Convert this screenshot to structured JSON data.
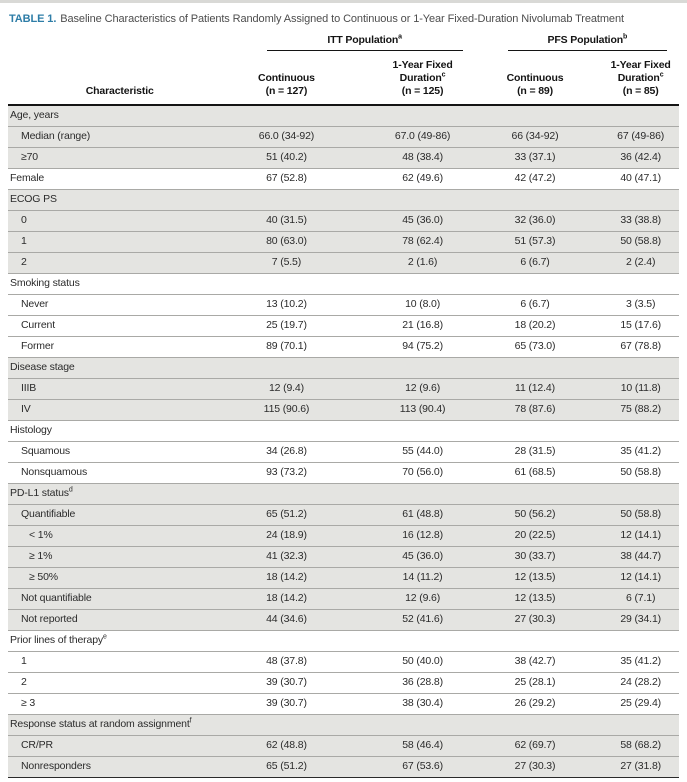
{
  "colors": {
    "accent_teal": "#2e7da7",
    "row_shade": "#e4e4e1",
    "grid_line": "#a9a9a6",
    "heavy_rule": "#141414"
  },
  "caption": {
    "label": "TABLE 1.",
    "title": "Baseline Characteristics of Patients Randomly Assigned to Continuous or 1-Year Fixed-Duration Nivolumab Treatment"
  },
  "table": {
    "characteristic_header": "Characteristic",
    "col_groups": [
      {
        "label": "ITT Population",
        "sup": "a"
      },
      {
        "label": "PFS Population",
        "sup": "b"
      }
    ],
    "columns": [
      {
        "id": "itt-continuous",
        "lines": [
          "Continuous"
        ],
        "sup": "",
        "n": "(n = 127)"
      },
      {
        "id": "itt-1yr-fixed",
        "lines": [
          "1-Year Fixed",
          "Duration"
        ],
        "sup": "c",
        "n": "(n = 125)"
      },
      {
        "id": "pfs-continuous",
        "lines": [
          "Continuous"
        ],
        "sup": "",
        "n": "(n = 89)"
      },
      {
        "id": "pfs-1yr-fixed",
        "lines": [
          "1-Year Fixed",
          "Duration"
        ],
        "sup": "c",
        "n": "(n = 85)"
      }
    ],
    "rows": [
      {
        "label": "Age, years",
        "sup": "",
        "indent": 0,
        "section": true,
        "shaded": true,
        "values": [
          "",
          "",
          "",
          ""
        ]
      },
      {
        "label": "Median (range)",
        "sup": "",
        "indent": 1,
        "section": false,
        "shaded": true,
        "values": [
          "66.0 (34-92)",
          "67.0 (49-86)",
          "66 (34-92)",
          "67 (49-86)"
        ]
      },
      {
        "label": "≥70",
        "sup": "",
        "indent": 1,
        "section": false,
        "shaded": true,
        "values": [
          "51 (40.2)",
          "48 (38.4)",
          "33 (37.1)",
          "36 (42.4)"
        ]
      },
      {
        "label": "Female",
        "sup": "",
        "indent": 0,
        "section": false,
        "shaded": false,
        "values": [
          "67 (52.8)",
          "62 (49.6)",
          "42 (47.2)",
          "40 (47.1)"
        ]
      },
      {
        "label": "ECOG PS",
        "sup": "",
        "indent": 0,
        "section": true,
        "shaded": true,
        "values": [
          "",
          "",
          "",
          ""
        ]
      },
      {
        "label": "0",
        "sup": "",
        "indent": 1,
        "section": false,
        "shaded": true,
        "values": [
          "40 (31.5)",
          "45 (36.0)",
          "32 (36.0)",
          "33 (38.8)"
        ]
      },
      {
        "label": "1",
        "sup": "",
        "indent": 1,
        "section": false,
        "shaded": true,
        "values": [
          "80 (63.0)",
          "78 (62.4)",
          "51 (57.3)",
          "50 (58.8)"
        ]
      },
      {
        "label": "2",
        "sup": "",
        "indent": 1,
        "section": false,
        "shaded": true,
        "values": [
          "7 (5.5)",
          "2 (1.6)",
          "6 (6.7)",
          "2 (2.4)"
        ]
      },
      {
        "label": "Smoking status",
        "sup": "",
        "indent": 0,
        "section": true,
        "shaded": false,
        "values": [
          "",
          "",
          "",
          ""
        ]
      },
      {
        "label": "Never",
        "sup": "",
        "indent": 1,
        "section": false,
        "shaded": false,
        "values": [
          "13 (10.2)",
          "10 (8.0)",
          "6 (6.7)",
          "3 (3.5)"
        ]
      },
      {
        "label": "Current",
        "sup": "",
        "indent": 1,
        "section": false,
        "shaded": false,
        "values": [
          "25 (19.7)",
          "21 (16.8)",
          "18 (20.2)",
          "15 (17.6)"
        ]
      },
      {
        "label": "Former",
        "sup": "",
        "indent": 1,
        "section": false,
        "shaded": false,
        "values": [
          "89 (70.1)",
          "94 (75.2)",
          "65 (73.0)",
          "67 (78.8)"
        ]
      },
      {
        "label": "Disease stage",
        "sup": "",
        "indent": 0,
        "section": true,
        "shaded": true,
        "values": [
          "",
          "",
          "",
          ""
        ]
      },
      {
        "label": "IIIB",
        "sup": "",
        "indent": 1,
        "section": false,
        "shaded": true,
        "values": [
          "12 (9.4)",
          "12 (9.6)",
          "11 (12.4)",
          "10 (11.8)"
        ]
      },
      {
        "label": "IV",
        "sup": "",
        "indent": 1,
        "section": false,
        "shaded": true,
        "values": [
          "115 (90.6)",
          "113 (90.4)",
          "78 (87.6)",
          "75 (88.2)"
        ]
      },
      {
        "label": "Histology",
        "sup": "",
        "indent": 0,
        "section": true,
        "shaded": false,
        "values": [
          "",
          "",
          "",
          ""
        ]
      },
      {
        "label": "Squamous",
        "sup": "",
        "indent": 1,
        "section": false,
        "shaded": false,
        "values": [
          "34 (26.8)",
          "55 (44.0)",
          "28 (31.5)",
          "35 (41.2)"
        ]
      },
      {
        "label": "Nonsquamous",
        "sup": "",
        "indent": 1,
        "section": false,
        "shaded": false,
        "values": [
          "93 (73.2)",
          "70 (56.0)",
          "61 (68.5)",
          "50 (58.8)"
        ]
      },
      {
        "label": "PD-L1 status",
        "sup": "d",
        "indent": 0,
        "section": true,
        "shaded": true,
        "values": [
          "",
          "",
          "",
          ""
        ]
      },
      {
        "label": "Quantifiable",
        "sup": "",
        "indent": 1,
        "section": false,
        "shaded": true,
        "values": [
          "65 (51.2)",
          "61 (48.8)",
          "50 (56.2)",
          "50 (58.8)"
        ]
      },
      {
        "label": "< 1%",
        "sup": "",
        "indent": 2,
        "section": false,
        "shaded": true,
        "values": [
          "24 (18.9)",
          "16 (12.8)",
          "20 (22.5)",
          "12 (14.1)"
        ]
      },
      {
        "label": "≥ 1%",
        "sup": "",
        "indent": 2,
        "section": false,
        "shaded": true,
        "values": [
          "41 (32.3)",
          "45 (36.0)",
          "30 (33.7)",
          "38 (44.7)"
        ]
      },
      {
        "label": "≥ 50%",
        "sup": "",
        "indent": 2,
        "section": false,
        "shaded": true,
        "values": [
          "18 (14.2)",
          "14 (11.2)",
          "12 (13.5)",
          "12 (14.1)"
        ]
      },
      {
        "label": "Not quantifiable",
        "sup": "",
        "indent": 1,
        "section": false,
        "shaded": true,
        "values": [
          "18 (14.2)",
          "12 (9.6)",
          "12 (13.5)",
          "6 (7.1)"
        ]
      },
      {
        "label": "Not reported",
        "sup": "",
        "indent": 1,
        "section": false,
        "shaded": true,
        "values": [
          "44 (34.6)",
          "52 (41.6)",
          "27 (30.3)",
          "29 (34.1)"
        ]
      },
      {
        "label": "Prior lines of therapy",
        "sup": "e",
        "indent": 0,
        "section": true,
        "shaded": false,
        "values": [
          "",
          "",
          "",
          ""
        ]
      },
      {
        "label": "1",
        "sup": "",
        "indent": 1,
        "section": false,
        "shaded": false,
        "values": [
          "48 (37.8)",
          "50 (40.0)",
          "38 (42.7)",
          "35 (41.2)"
        ]
      },
      {
        "label": "2",
        "sup": "",
        "indent": 1,
        "section": false,
        "shaded": false,
        "values": [
          "39 (30.7)",
          "36 (28.8)",
          "25 (28.1)",
          "24 (28.2)"
        ]
      },
      {
        "label": "≥ 3",
        "sup": "",
        "indent": 1,
        "section": false,
        "shaded": false,
        "values": [
          "39 (30.7)",
          "38 (30.4)",
          "26 (29.2)",
          "25 (29.4)"
        ]
      },
      {
        "label": "Response status at random assignment",
        "sup": "f",
        "indent": 0,
        "section": true,
        "shaded": true,
        "values": [
          "",
          "",
          "",
          ""
        ]
      },
      {
        "label": "CR/PR",
        "sup": "",
        "indent": 1,
        "section": false,
        "shaded": true,
        "values": [
          "62 (48.8)",
          "58 (46.4)",
          "62 (69.7)",
          "58 (68.2)"
        ]
      },
      {
        "label": "Nonresponders",
        "sup": "",
        "indent": 1,
        "section": false,
        "shaded": true,
        "values": [
          "65 (51.2)",
          "67 (53.6)",
          "27 (30.3)",
          "27 (31.8)"
        ]
      }
    ]
  }
}
